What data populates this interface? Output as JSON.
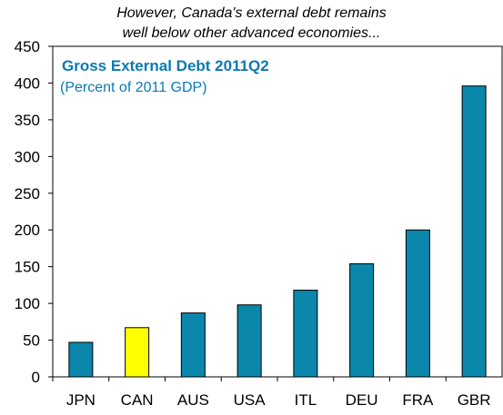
{
  "header": {
    "line1": "However, Canada's external debt remains",
    "line2": "well below other advanced economies..."
  },
  "chart_data": {
    "type": "bar",
    "title": "Gross External Debt 2011Q2",
    "subtitle": "(Percent of 2011 GDP)",
    "categories": [
      "JPN",
      "CAN",
      "AUS",
      "USA",
      "ITL",
      "DEU",
      "FRA",
      "GBR"
    ],
    "values": [
      47,
      67,
      87,
      98,
      118,
      154,
      200,
      396
    ],
    "highlight_category": "CAN",
    "ylim": [
      0,
      450
    ],
    "yticks": [
      0,
      50,
      100,
      150,
      200,
      250,
      300,
      350,
      400,
      450
    ],
    "grid": false,
    "colors": {
      "default": "#0a87ab",
      "highlight": "#ffff00",
      "axis": "#000000"
    }
  }
}
